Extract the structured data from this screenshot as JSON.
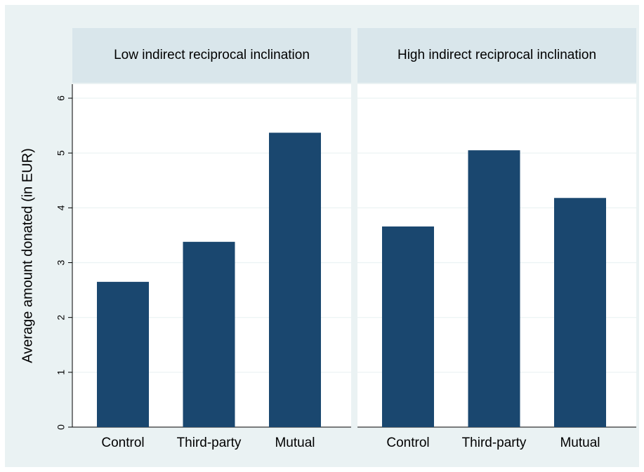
{
  "chart_data": [
    {
      "type": "bar",
      "title": "Low indirect reciprocal inclination",
      "ylabel": "Average amount donated (in EUR)",
      "categories": [
        "Control",
        "Third-party",
        "Mutual"
      ],
      "values": [
        2.65,
        3.38,
        5.37
      ],
      "color": "#1a476f",
      "ylim": [
        0,
        6
      ],
      "yticks": [
        0,
        1,
        2,
        3,
        4,
        5,
        6
      ],
      "grid": true
    },
    {
      "type": "bar",
      "title": "High indirect reciprocal inclination",
      "categories": [
        "Control",
        "Third-party",
        "Mutual"
      ],
      "values": [
        3.66,
        5.05,
        4.18
      ],
      "color": "#1a476f",
      "ylim": [
        0,
        6
      ],
      "yticks": [
        0,
        1,
        2,
        3,
        4,
        5,
        6
      ],
      "grid": true
    }
  ]
}
